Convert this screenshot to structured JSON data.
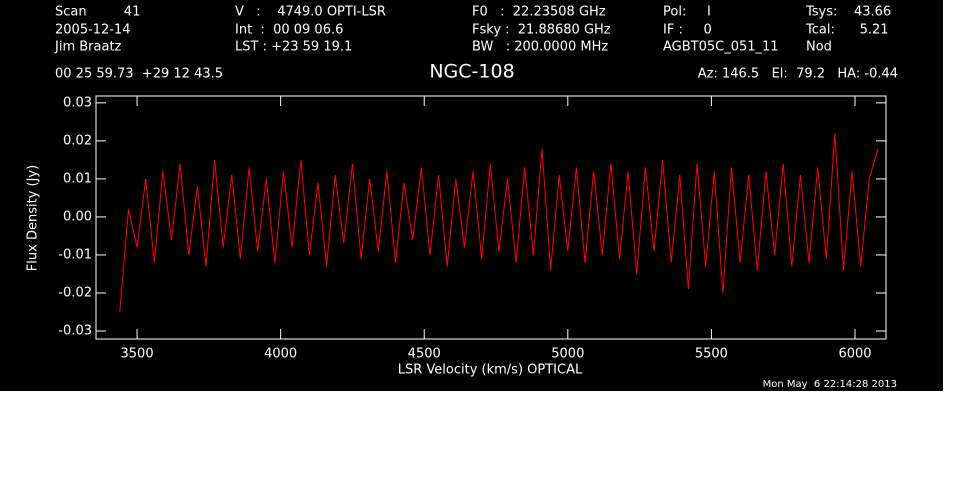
{
  "chart_data": {
    "type": "line",
    "title": "NGC-108",
    "x_label": "LSR Velocity (km/s) OPTICAL",
    "y_label": "Flux Density (Jy)",
    "header": [
      [
        "Scan         41",
        "2005-12-14",
        "Jim Braatz"
      ],
      [
        "V   :    4749.0 OPTI-LSR",
        "Int  :  00 09 06.6",
        "LST : +23 59 19.1"
      ],
      [
        "F0   :  22.23508 GHz",
        "Fsky :  21.88680 GHz",
        "BW   : 200.0000 MHz"
      ],
      [
        "Pol:     I",
        "IF :     0",
        "AGBT05C_051_11"
      ],
      [
        "Tsys:    43.66",
        "Tcal:      5.21",
        "Nod"
      ]
    ],
    "coordinates": "00 25 59.73  +29 12 43.5",
    "pointing": "Az: 146.5   El:  79.2   HA: -0.44",
    "timestamp": "Mon May  6 22:14:28 2013",
    "color": "#ff0000",
    "xlim": [
      3357,
      6108
    ],
    "ylim": [
      -0.0321,
      0.0318
    ],
    "xticks": [
      3500,
      4000,
      4500,
      5000,
      5500,
      6000
    ],
    "yticks": [
      -0.03,
      -0.02,
      -0.01,
      {
        "value": 0,
        "label": "0.00"
      },
      0.01,
      0.02,
      0.03
    ],
    "x": [
      3440,
      3470,
      3500,
      3530,
      3560,
      3590,
      3620,
      3650,
      3680,
      3710,
      3740,
      3770,
      3800,
      3830,
      3860,
      3890,
      3920,
      3950,
      3980,
      4010,
      4040,
      4070,
      4100,
      4130,
      4160,
      4190,
      4220,
      4250,
      4280,
      4310,
      4340,
      4370,
      4400,
      4430,
      4460,
      4490,
      4520,
      4550,
      4580,
      4610,
      4640,
      4670,
      4700,
      4730,
      4760,
      4790,
      4820,
      4850,
      4880,
      4910,
      4940,
      4970,
      5000,
      5030,
      5060,
      5090,
      5120,
      5150,
      5180,
      5210,
      5240,
      5270,
      5300,
      5330,
      5360,
      5390,
      5420,
      5450,
      5480,
      5510,
      5540,
      5570,
      5600,
      5630,
      5660,
      5690,
      5720,
      5750,
      5780,
      5810,
      5840,
      5870,
      5900,
      5930,
      5960,
      5990,
      6020,
      6050,
      6080
    ],
    "values": [
      -0.025,
      0.002,
      -0.008,
      0.01,
      -0.012,
      0.012,
      -0.006,
      0.014,
      -0.01,
      0.008,
      -0.013,
      0.015,
      -0.008,
      0.011,
      -0.011,
      0.013,
      -0.009,
      0.01,
      -0.012,
      0.012,
      -0.008,
      0.015,
      -0.01,
      0.009,
      -0.013,
      0.011,
      -0.007,
      0.014,
      -0.011,
      0.01,
      -0.009,
      0.012,
      -0.012,
      0.009,
      -0.006,
      0.013,
      -0.01,
      0.011,
      -0.013,
      0.01,
      -0.008,
      0.012,
      -0.011,
      0.014,
      -0.009,
      0.01,
      -0.012,
      0.013,
      -0.01,
      0.018,
      -0.014,
      0.011,
      -0.009,
      0.013,
      -0.012,
      0.012,
      -0.01,
      0.014,
      -0.011,
      0.012,
      -0.015,
      0.013,
      -0.009,
      0.015,
      -0.012,
      0.011,
      -0.019,
      0.014,
      -0.013,
      0.012,
      -0.02,
      0.013,
      -0.012,
      0.011,
      -0.014,
      0.012,
      -0.01,
      0.014,
      -0.013,
      0.011,
      -0.012,
      0.013,
      -0.011,
      0.022,
      -0.014,
      0.012,
      -0.013,
      0.01,
      0.018
    ]
  }
}
